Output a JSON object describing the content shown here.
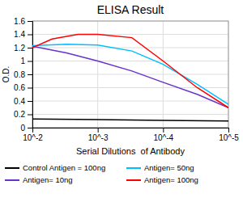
{
  "chart_data": {
    "type": "line",
    "title": "ELISA Result",
    "x_label": "Serial Dilutions  of Antibody",
    "y_label": "O.D.",
    "log": "x",
    "grid": true,
    "legend": "bottom",
    "xlim": [
      0.01,
      1e-05
    ],
    "xticks": [
      {
        "value": 0.01,
        "label": "10^-2"
      },
      {
        "value": 0.001,
        "label": "10^-3"
      },
      {
        "value": 0.0001,
        "label": "10^-4"
      },
      {
        "value": 1e-05,
        "label": "10^-5"
      }
    ],
    "ylim": [
      0,
      1.6
    ],
    "yticks": [
      0,
      0.2,
      0.4,
      0.6,
      0.8,
      1,
      1.2,
      1.4,
      1.6
    ],
    "series": [
      {
        "name": "Control Antigen = 100ng",
        "color": "black",
        "x": [
          0.01,
          0.001,
          0.0001,
          1e-05
        ],
        "values": [
          0.13,
          0.12,
          0.11,
          0.1
        ]
      },
      {
        "name": "Antigen= 10ng",
        "color": "#6633cc",
        "x": [
          0.01,
          0.003,
          0.001,
          0.0003,
          0.0001,
          3e-05,
          1e-05
        ],
        "values": [
          1.22,
          1.12,
          1.0,
          0.85,
          0.68,
          0.5,
          0.3
        ]
      },
      {
        "name": "Antigen= 50ng",
        "color": "#00bfff",
        "x": [
          0.01,
          0.003,
          0.001,
          0.0003,
          0.0001,
          3e-05,
          1e-05
        ],
        "values": [
          1.23,
          1.25,
          1.24,
          1.15,
          0.95,
          0.65,
          0.35
        ]
      },
      {
        "name": "Antigen= 100ng",
        "color": "red",
        "x": [
          0.01,
          0.005,
          0.002,
          0.001,
          0.0003,
          0.0001,
          3e-05,
          1e-05
        ],
        "values": [
          1.2,
          1.33,
          1.4,
          1.4,
          1.35,
          1.0,
          0.6,
          0.3
        ]
      }
    ]
  }
}
